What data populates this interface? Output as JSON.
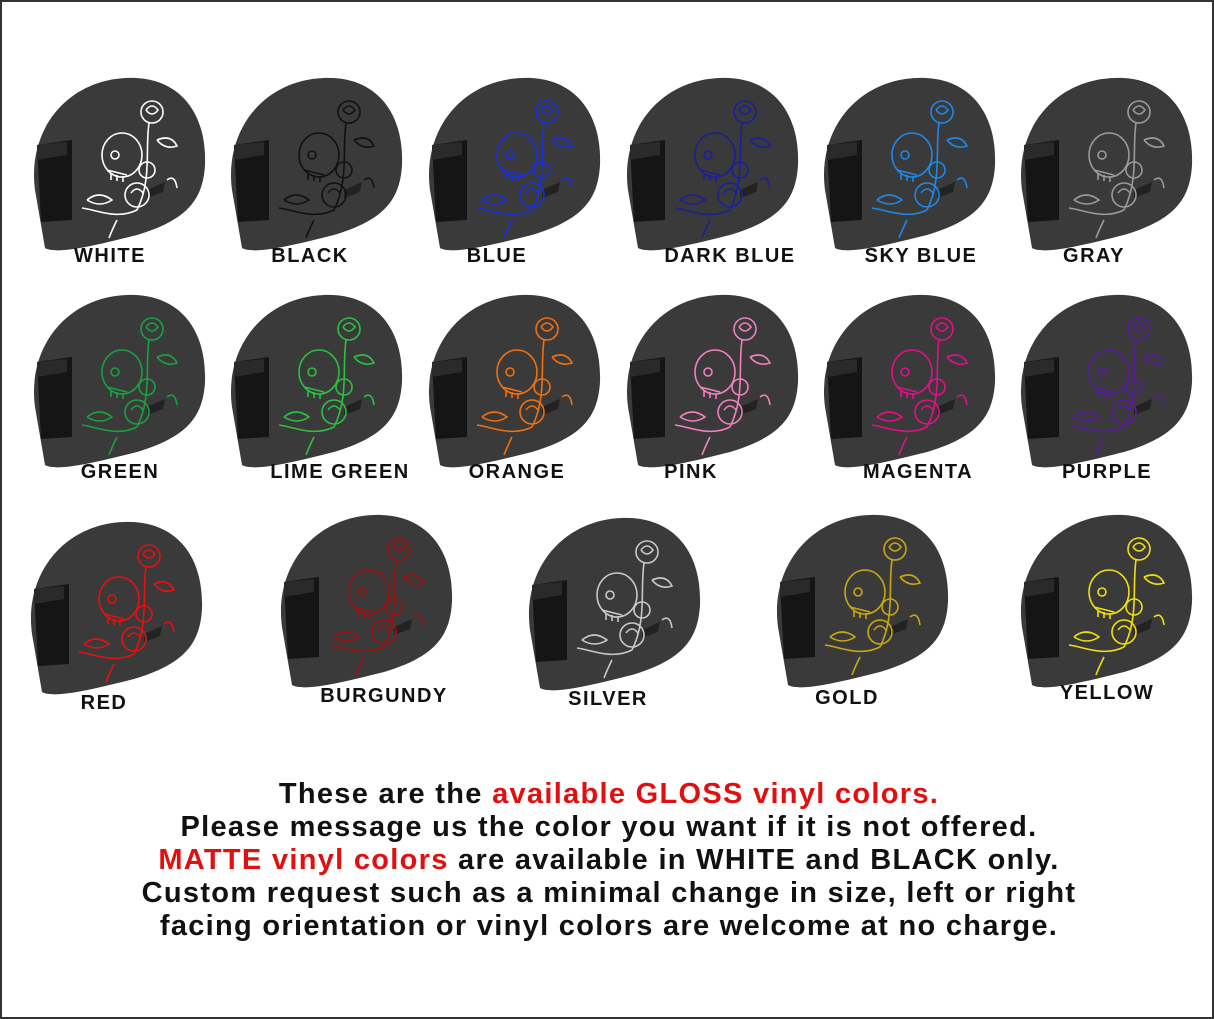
{
  "colors": [
    {
      "label": "WHITE",
      "decal": "#ffffff"
    },
    {
      "label": "BLACK",
      "decal": "#111111"
    },
    {
      "label": "BLUE",
      "decal": "#1a2fe0"
    },
    {
      "label": "DARK BLUE",
      "decal": "#1a1f9a"
    },
    {
      "label": "SKY BLUE",
      "decal": "#1e88e8"
    },
    {
      "label": "GRAY",
      "decal": "#9a9a9a"
    },
    {
      "label": "GREEN",
      "decal": "#1aa040"
    },
    {
      "label": "LIME GREEN",
      "decal": "#2cc040"
    },
    {
      "label": "ORANGE",
      "decal": "#f07010"
    },
    {
      "label": "PINK",
      "decal": "#f080c0"
    },
    {
      "label": "MAGENTA",
      "decal": "#e0108a"
    },
    {
      "label": "PURPLE",
      "decal": "#5a1aa0"
    },
    {
      "label": "RED",
      "decal": "#e81010"
    },
    {
      "label": "BURGUNDY",
      "decal": "#a01010"
    },
    {
      "label": "SILVER",
      "decal": "#c8c8c8"
    },
    {
      "label": "GOLD",
      "decal": "#c8a810"
    },
    {
      "label": "YELLOW",
      "decal": "#f0e010"
    }
  ],
  "notes": {
    "line1_pre": "These are the ",
    "line1_red": "available GLOSS vinyl colors.",
    "line2": "Please message us the color you want if it is not offered.",
    "line3_red": "MATTE vinyl colors",
    "line3_post": " are available in WHITE and BLACK only.",
    "line4": "Custom request such as a minimal change in size, left or right",
    "line5": "facing orientation or vinyl colors are welcome at no charge."
  },
  "accent_red": "#e01010",
  "helmet_color": "#3a3a3a"
}
